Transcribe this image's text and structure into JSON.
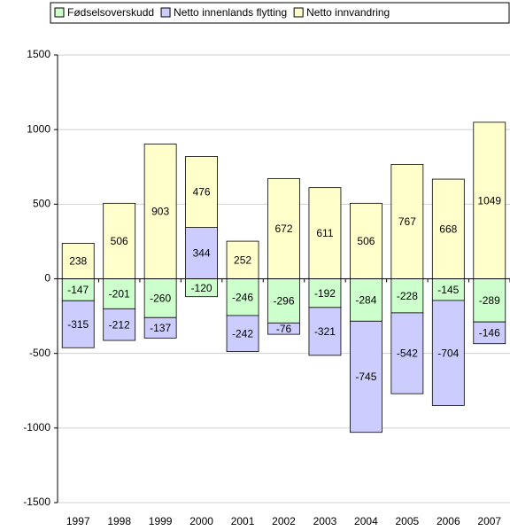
{
  "chart_data": {
    "type": "stacked_bar",
    "categories": [
      "1997",
      "1998",
      "1999",
      "2000",
      "2001",
      "2002",
      "2003",
      "2004",
      "2005",
      "2006",
      "2007"
    ],
    "series": [
      {
        "name": "Fødselsoverskudd",
        "color": "#ccffcc",
        "values": [
          -147,
          -201,
          -260,
          -120,
          -246,
          -296,
          -192,
          -284,
          -228,
          -145,
          -289
        ]
      },
      {
        "name": "Netto innenlands flytting",
        "color": "#ccccff",
        "values": [
          -315,
          -212,
          -137,
          344,
          -242,
          -76,
          -321,
          -745,
          -542,
          -704,
          -146
        ]
      },
      {
        "name": "Netto innvandring",
        "color": "#ffffcc",
        "values": [
          238,
          506,
          903,
          476,
          252,
          672,
          611,
          506,
          767,
          668,
          1049
        ]
      }
    ],
    "ylim": [
      -1500,
      1500
    ],
    "yticks": [
      -1500,
      -1000,
      -500,
      0,
      500,
      1000,
      1500
    ],
    "grid": true
  }
}
